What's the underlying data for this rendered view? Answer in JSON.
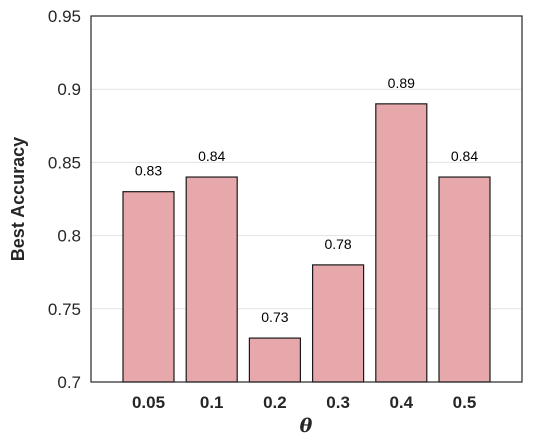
{
  "chart_data": {
    "type": "bar",
    "title": "",
    "xlabel": "θ",
    "ylabel": "Best Accuracy",
    "categories": [
      "0.05",
      "0.1",
      "0.2",
      "0.3",
      "0.4",
      "0.5"
    ],
    "values": [
      0.83,
      0.84,
      0.73,
      0.78,
      0.89,
      0.84
    ],
    "data_labels": [
      "0.83",
      "0.84",
      "0.73",
      "0.78",
      "0.89",
      "0.84"
    ],
    "ylim": [
      0.7,
      0.95
    ],
    "yticks": [
      "0.7",
      "0.75",
      "0.8",
      "0.85",
      "0.9",
      "0.95"
    ],
    "grid": "horizontal",
    "legend": "none",
    "colors": {
      "bar_fill": "#e6a8aa",
      "bar_edge": "#1a1a1a",
      "grid": "#e3e3e3",
      "axis": "#262626"
    }
  }
}
